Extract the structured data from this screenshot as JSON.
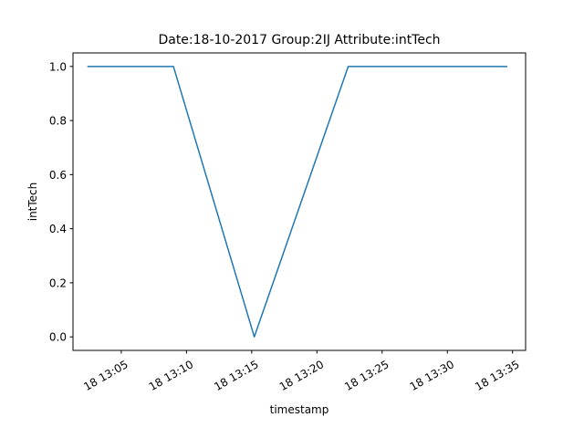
{
  "chart_data": {
    "type": "line",
    "title": "Date:18-10-2017  Group:2IJ Attribute:intTech",
    "xlabel": "timestamp",
    "ylabel": "intTech",
    "x_unit": "minutes past 13:00 on 18-10-2017",
    "xlim": [
      1.3,
      36.0
    ],
    "ylim": [
      -0.05,
      1.05
    ],
    "x_ticks": [
      {
        "value": 5,
        "label": "18 13:05"
      },
      {
        "value": 10,
        "label": "18 13:10"
      },
      {
        "value": 15,
        "label": "18 13:15"
      },
      {
        "value": 20,
        "label": "18 13:20"
      },
      {
        "value": 25,
        "label": "18 13:25"
      },
      {
        "value": 30,
        "label": "18 13:30"
      },
      {
        "value": 35,
        "label": "18 13:35"
      }
    ],
    "y_ticks": [
      {
        "value": 0.0,
        "label": "0.0"
      },
      {
        "value": 0.2,
        "label": "0.2"
      },
      {
        "value": 0.4,
        "label": "0.4"
      },
      {
        "value": 0.6,
        "label": "0.6"
      },
      {
        "value": 0.8,
        "label": "0.8"
      },
      {
        "value": 1.0,
        "label": "1.0"
      }
    ],
    "grid": false,
    "color": "#1f77b4",
    "series": [
      {
        "x": [
          2.4,
          9.0,
          15.2,
          22.4,
          34.6
        ],
        "y": [
          1.0,
          1.0,
          0.0,
          1.0,
          1.0
        ]
      }
    ]
  }
}
